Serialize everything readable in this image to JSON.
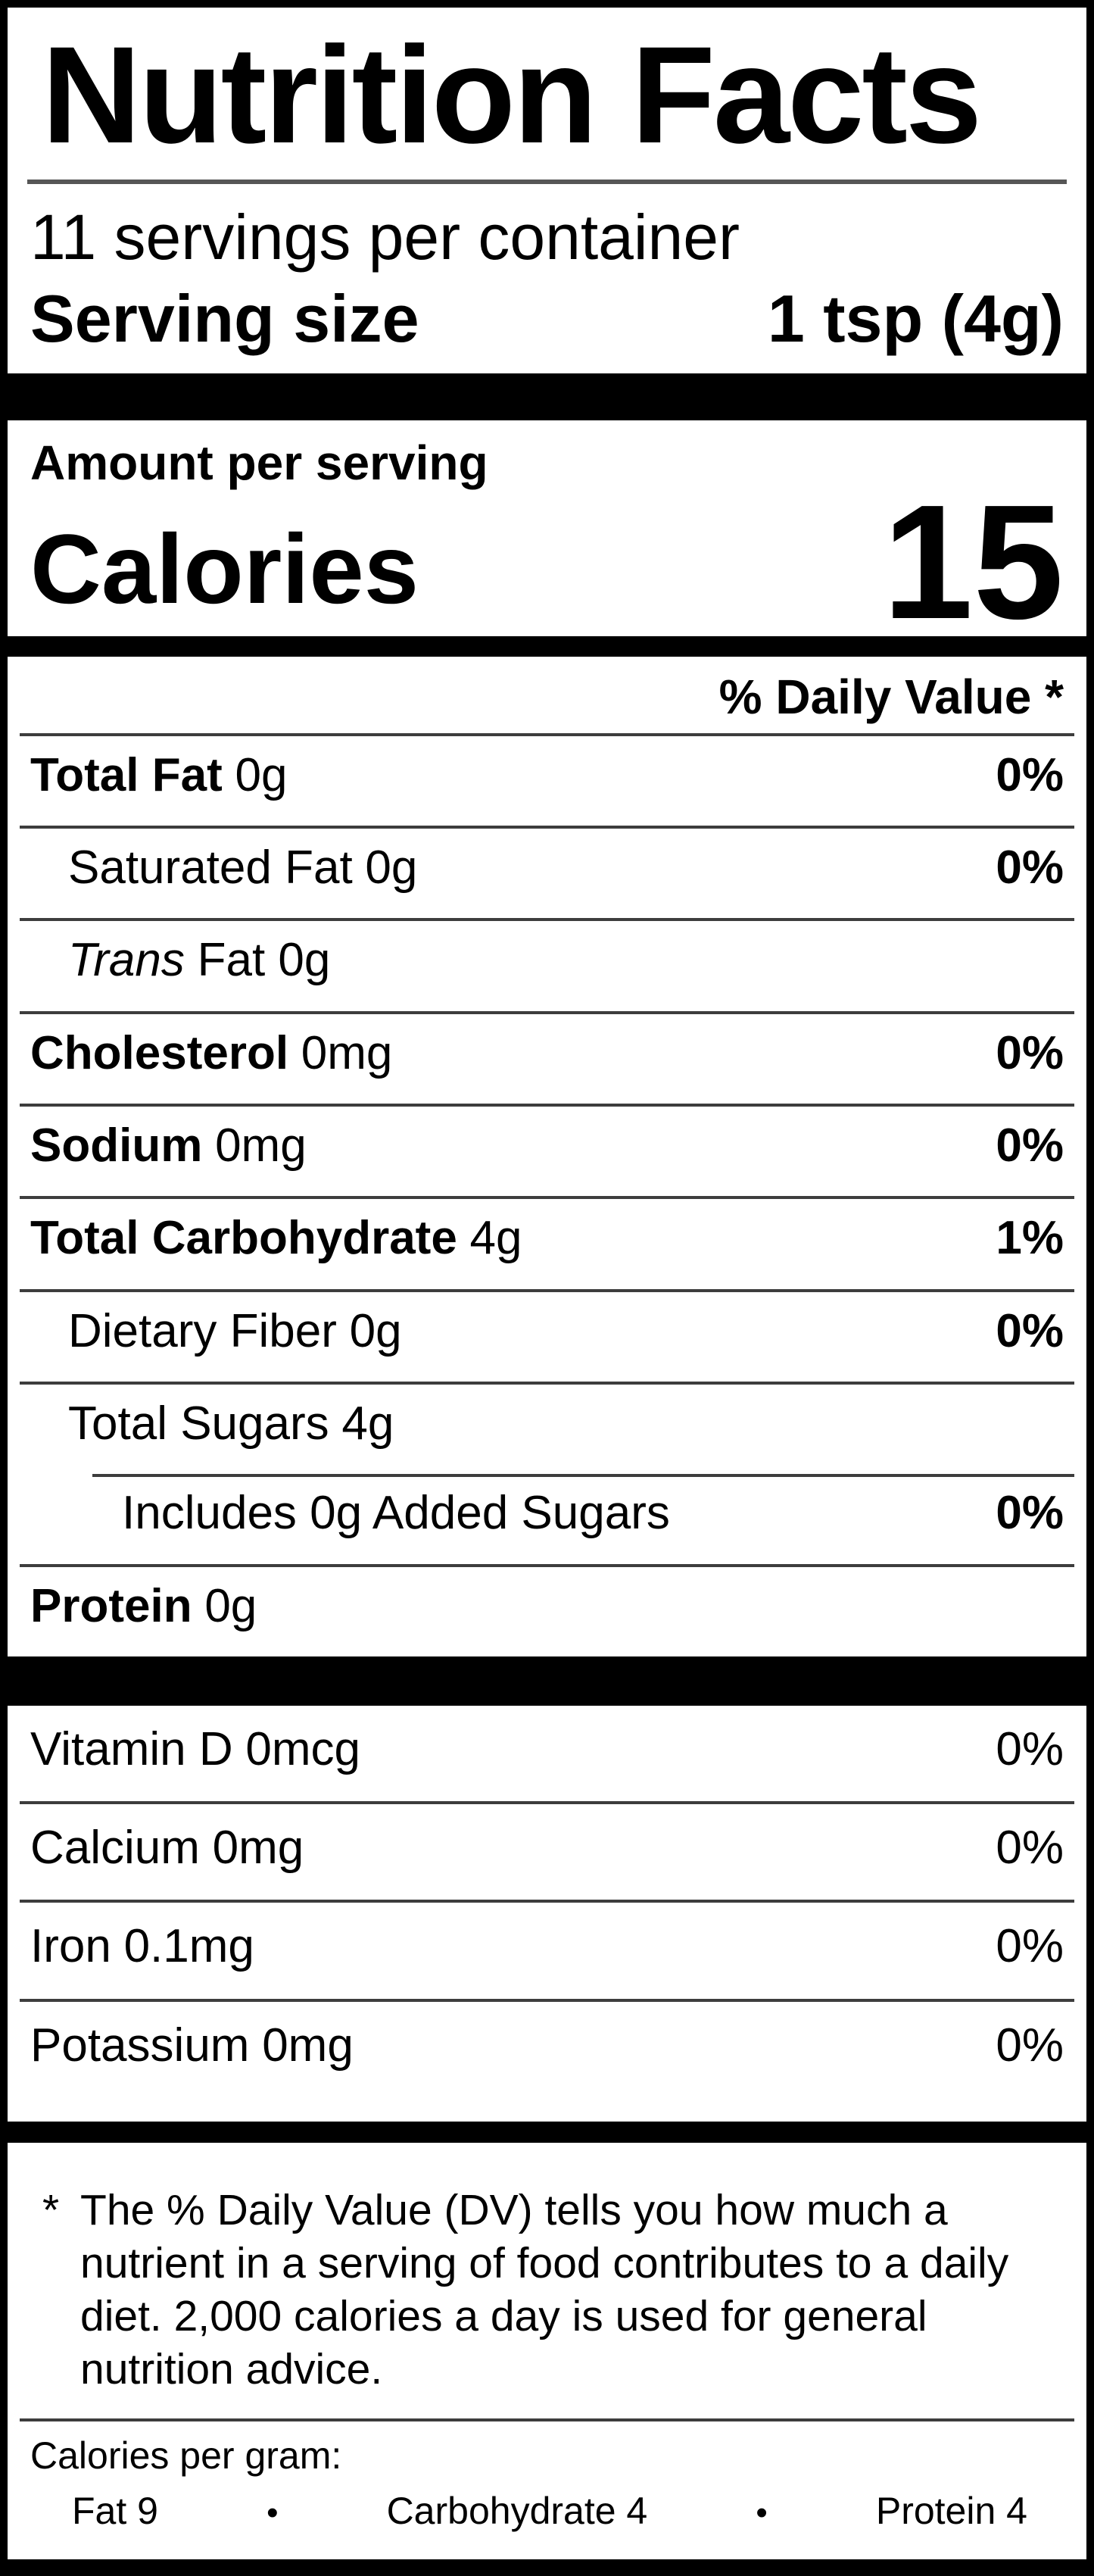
{
  "label": {
    "title": "Nutrition Facts",
    "servings_per_container": "11 servings per container",
    "serving_size": {
      "label": "Serving size",
      "value": "1 tsp (4g)"
    },
    "amount_per_serving": "Amount per serving",
    "calories": {
      "label": "Calories",
      "value": "15"
    },
    "daily_value_header": "% Daily Value *",
    "nutrients": [
      {
        "name": "Total Fat",
        "amount": "0g",
        "dv": "0%"
      },
      {
        "name": "Saturated Fat",
        "amount": "0g",
        "dv": "0%"
      },
      {
        "name": "Trans",
        "amount": "Fat 0g",
        "dv": ""
      },
      {
        "name": "Cholesterol",
        "amount": "0mg",
        "dv": "0%"
      },
      {
        "name": "Sodium",
        "amount": "0mg",
        "dv": "0%"
      },
      {
        "name": "Total Carbohydrate",
        "amount": "4g",
        "dv": "1%"
      },
      {
        "name": "Dietary Fiber",
        "amount": "0g",
        "dv": "0%"
      },
      {
        "name": "Total Sugars",
        "amount": "4g",
        "dv": ""
      },
      {
        "name": "Includes 0g Added Sugars",
        "amount": "",
        "dv": "0%"
      },
      {
        "name": "Protein",
        "amount": "0g",
        "dv": ""
      }
    ],
    "micronutrients": [
      {
        "name": "Vitamin D",
        "amount": "0mcg",
        "dv": "0%"
      },
      {
        "name": "Calcium",
        "amount": "0mg",
        "dv": "0%"
      },
      {
        "name": "Iron",
        "amount": "0.1mg",
        "dv": "0%"
      },
      {
        "name": "Potassium",
        "amount": "0mg",
        "dv": "0%"
      }
    ],
    "footnote": {
      "marker": "*",
      "text": "The % Daily Value (DV) tells you how much a nutrient in a serving of food contributes to a daily diet. 2,000 calories a day is used for general nutrition advice."
    },
    "calories_per_gram": {
      "heading": "Calories per gram:",
      "items": [
        "Fat 9",
        "Carbohydrate 4",
        "Protein 4"
      ],
      "separator": "•"
    },
    "colors": {
      "text": "#000000",
      "background": "#ffffff",
      "bar": "#000000",
      "hairline": "#3d3d3d"
    }
  }
}
